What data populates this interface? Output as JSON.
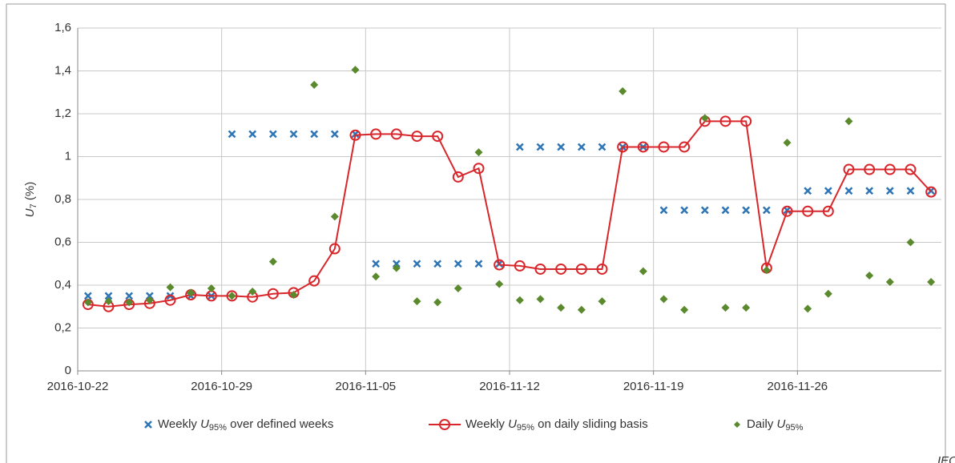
{
  "chart_data": {
    "type": "line",
    "ylabel": "U7 (%)",
    "source_label": "IEC",
    "categories": [
      "2016-10-22",
      null,
      null,
      null,
      null,
      null,
      null,
      "2016-10-29",
      null,
      null,
      null,
      null,
      null,
      null,
      "2016-11-05",
      null,
      null,
      null,
      null,
      null,
      null,
      "2016-11-12",
      null,
      null,
      null,
      null,
      null,
      null,
      "2016-11-19",
      null,
      null,
      null,
      null,
      null,
      null,
      "2016-11-26",
      null,
      null,
      null,
      null,
      null,
      null
    ],
    "ylim": [
      0,
      1.6
    ],
    "yticks": [
      0,
      {
        "value": 0.2,
        "label": "0,2"
      },
      {
        "value": 0.4,
        "label": "0,4"
      },
      {
        "value": 0.6,
        "label": "0,6"
      },
      {
        "value": 0.8,
        "label": "0,8"
      },
      1,
      {
        "value": 1.2,
        "label": "1,2"
      },
      {
        "value": 1.4,
        "label": "1,4"
      },
      {
        "value": 1.6,
        "label": "1,6"
      }
    ],
    "grid": true,
    "legend": "bottom",
    "series": [
      {
        "name": "Weekly U95% over defined weeks",
        "color": "#2e75b6",
        "marker": "x",
        "line": false,
        "values": [
          0.35,
          0.35,
          0.35,
          0.35,
          0.35,
          0.35,
          0.35,
          1.105,
          1.105,
          1.105,
          1.105,
          1.105,
          1.105,
          1.105,
          0.5,
          0.5,
          0.5,
          0.5,
          0.5,
          0.5,
          0.5,
          1.045,
          1.045,
          1.045,
          1.045,
          1.045,
          1.045,
          1.045,
          0.75,
          0.75,
          0.75,
          0.75,
          0.75,
          0.75,
          0.75,
          0.84,
          0.84,
          0.84,
          0.84,
          0.84,
          0.84,
          0.84
        ]
      },
      {
        "name": "Weekly U95% on daily sliding basis",
        "color": "#d9262b",
        "marker": "circle",
        "line": true,
        "values": [
          0.31,
          0.3,
          0.31,
          0.315,
          0.33,
          0.355,
          0.35,
          0.35,
          0.345,
          0.36,
          0.365,
          0.42,
          0.57,
          1.1,
          1.105,
          1.105,
          1.095,
          1.095,
          0.905,
          0.945,
          0.495,
          0.49,
          0.475,
          0.475,
          0.475,
          0.475,
          1.045,
          1.045,
          1.045,
          1.045,
          1.165,
          1.165,
          1.165,
          0.48,
          0.745,
          0.745,
          0.745,
          0.94,
          0.94,
          0.94,
          0.94,
          0.835
        ]
      },
      {
        "name": "Daily U95%",
        "color": "#5b8a2e",
        "marker": "diamond",
        "line": false,
        "values": [
          0.32,
          0.325,
          0.32,
          0.33,
          0.39,
          0.365,
          0.385,
          0.35,
          0.37,
          0.51,
          0.355,
          1.335,
          0.72,
          1.405,
          0.44,
          0.48,
          0.325,
          0.32,
          0.385,
          1.02,
          0.405,
          0.33,
          0.335,
          0.295,
          0.285,
          0.325,
          1.305,
          0.465,
          0.335,
          0.285,
          1.18,
          0.295,
          0.295,
          0.47,
          1.065,
          0.29,
          0.36,
          1.165,
          0.445,
          0.415,
          0.6,
          0.415
        ]
      }
    ]
  }
}
